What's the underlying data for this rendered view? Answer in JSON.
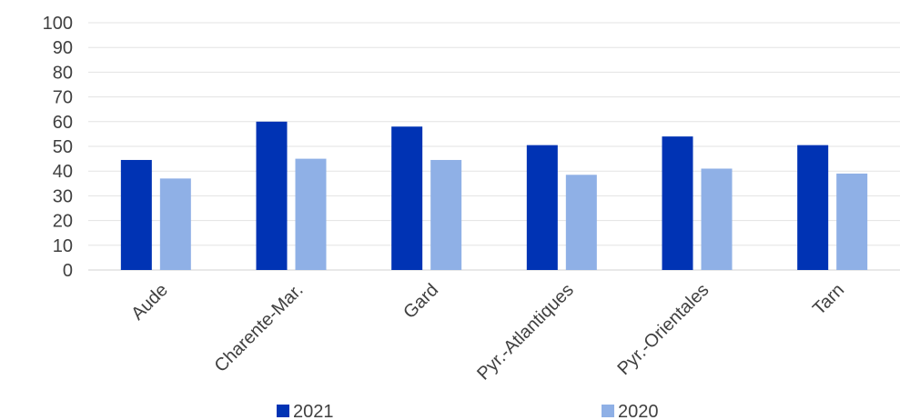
{
  "chart_data": {
    "type": "bar",
    "categories": [
      "Aude",
      "Charente-Mar.",
      "Gard",
      "Pyr.-Atlantiques",
      "Pyr.-Orientales",
      "Tarn"
    ],
    "series": [
      {
        "name": "2021",
        "color": "#0033b4",
        "values": [
          44.5,
          60,
          58,
          50.5,
          54,
          50.5
        ]
      },
      {
        "name": "2020",
        "color": "#8fb0e6",
        "values": [
          37,
          45,
          44.5,
          38.5,
          41,
          39
        ]
      }
    ],
    "ylim": [
      0,
      100
    ],
    "yticks": [
      "0",
      "10",
      "20",
      "30",
      "40",
      "50",
      "60",
      "70",
      "80",
      "90",
      "100"
    ],
    "grid": true,
    "legend": "bottom",
    "title": "",
    "xlabel": "",
    "ylabel": ""
  }
}
